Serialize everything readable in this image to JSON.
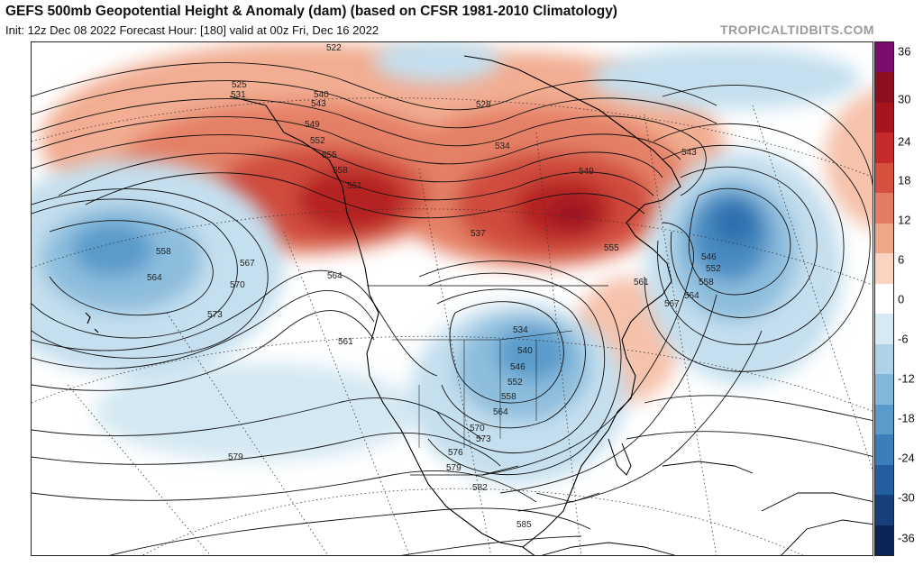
{
  "header": {
    "title": "GEFS 500mb Geopotential Height & Anomaly (dam) (based on CFSR 1981-2010 Climatology)",
    "subtitle": "Init: 12z Dec 08 2022   Forecast Hour: [180]   valid at 00z Fri, Dec 16 2022",
    "brand": "TROPICALTIDBITS.COM"
  },
  "colorbar": {
    "labels": [
      "36",
      "30",
      "24",
      "18",
      "12",
      "6",
      "0",
      "-6",
      "-12",
      "-18",
      "-24",
      "-30",
      "-36"
    ],
    "colors": [
      "#7a0d6e",
      "#8b0f1e",
      "#a8141e",
      "#c42a2a",
      "#d6503f",
      "#e47b63",
      "#f0a689",
      "#fad3c1",
      "#ffffff",
      "#d6e9f4",
      "#aed2e8",
      "#84b8db",
      "#5a9bca",
      "#3a7eba",
      "#235fa0",
      "#163f7b",
      "#0b2656"
    ]
  },
  "contour_labels": [
    "522",
    "525",
    "531",
    "540",
    "543",
    "549",
    "552",
    "555",
    "558",
    "561",
    "528",
    "534",
    "537",
    "549",
    "543",
    "546",
    "552",
    "555",
    "558",
    "561",
    "564",
    "567",
    "558",
    "564",
    "567",
    "570",
    "573",
    "564",
    "561",
    "534",
    "540",
    "546",
    "552",
    "558",
    "564",
    "570",
    "573",
    "576",
    "579",
    "579",
    "582",
    "585"
  ]
}
